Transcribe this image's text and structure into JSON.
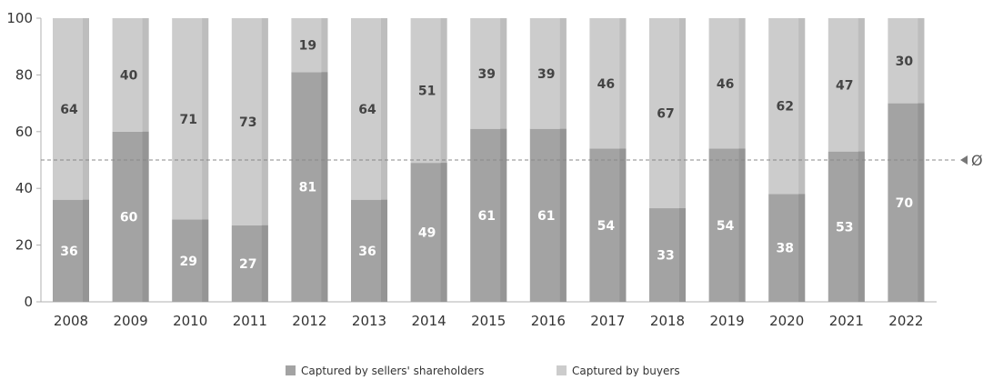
{
  "chart_data": {
    "type": "bar",
    "stacked": true,
    "categories": [
      "2008",
      "2009",
      "2010",
      "2011",
      "2012",
      "2013",
      "2014",
      "2015",
      "2016",
      "2017",
      "2018",
      "2019",
      "2020",
      "2021",
      "2022"
    ],
    "series": [
      {
        "name": "Captured by sellers' shareholders",
        "values": [
          36,
          60,
          29,
          27,
          81,
          36,
          49,
          61,
          61,
          54,
          33,
          54,
          38,
          53,
          70
        ],
        "color": "#a3a3a3"
      },
      {
        "name": "Captured by buyers",
        "values": [
          64,
          40,
          71,
          73,
          19,
          64,
          51,
          39,
          39,
          46,
          67,
          46,
          62,
          47,
          30
        ],
        "color": "#cccccc"
      }
    ],
    "ylim": [
      0,
      100
    ],
    "yticks": [
      0,
      20,
      40,
      60,
      80,
      100
    ],
    "average": {
      "value": 50,
      "label": "Ø 50"
    },
    "legend_position": "bottom-center",
    "grid": false
  }
}
